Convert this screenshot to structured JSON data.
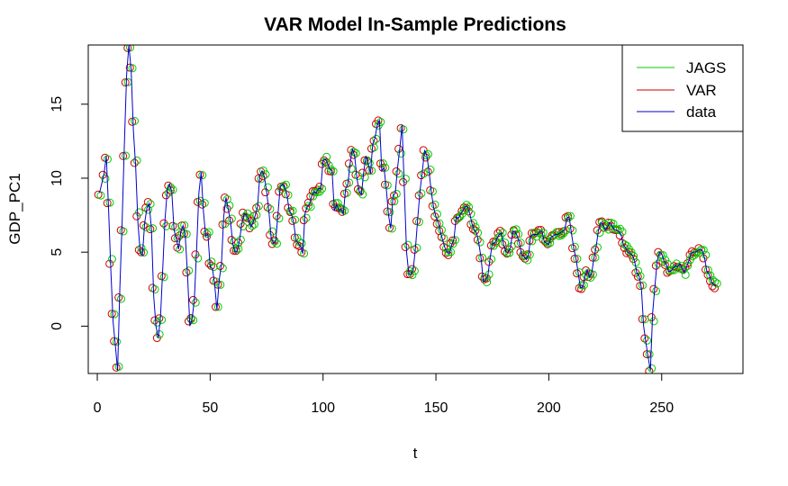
{
  "chart_data": {
    "type": "line",
    "title": "VAR Model In-Sample Predictions",
    "xlabel": "t",
    "ylabel": "GDP_PC1",
    "xlim": [
      -4,
      286
    ],
    "ylim": [
      -3.2,
      19.0
    ],
    "x_ticks": [
      0,
      50,
      100,
      150,
      200,
      250
    ],
    "y_ticks": [
      0,
      5,
      10,
      15
    ],
    "legend": {
      "placement": "top-right",
      "entries": [
        {
          "label": "JAGS",
          "color": "#00cc00"
        },
        {
          "label": "VAR",
          "color": "#cc0000"
        },
        {
          "label": "data",
          "color": "#0000cc"
        }
      ]
    },
    "anchors": [
      [
        1,
        9.0
      ],
      [
        3,
        10.3
      ],
      [
        4,
        11.5
      ],
      [
        5,
        7.9
      ],
      [
        6,
        3.8
      ],
      [
        7,
        0.3
      ],
      [
        8,
        -1.3
      ],
      [
        9,
        -3.0
      ],
      [
        10,
        2.6
      ],
      [
        11,
        7.0
      ],
      [
        12,
        12.3
      ],
      [
        13,
        17.0
      ],
      [
        14,
        19.0
      ],
      [
        15,
        17.3
      ],
      [
        16,
        13.2
      ],
      [
        17,
        10.8
      ],
      [
        18,
        7.0
      ],
      [
        19,
        5.0
      ],
      [
        20,
        4.8
      ],
      [
        21,
        7.0
      ],
      [
        22,
        8.0
      ],
      [
        23,
        8.3
      ],
      [
        24,
        6.5
      ],
      [
        25,
        2.0
      ],
      [
        26,
        0.0
      ],
      [
        27,
        -0.8
      ],
      [
        28,
        0.6
      ],
      [
        29,
        3.9
      ],
      [
        30,
        7.2
      ],
      [
        31,
        9.2
      ],
      [
        32,
        9.6
      ],
      [
        33,
        9.1
      ],
      [
        34,
        6.5
      ],
      [
        35,
        5.9
      ],
      [
        36,
        5.2
      ],
      [
        37,
        6.4
      ],
      [
        38,
        6.8
      ],
      [
        39,
        6.0
      ],
      [
        40,
        3.4
      ],
      [
        41,
        0.0
      ],
      [
        42,
        0.5
      ],
      [
        43,
        1.8
      ],
      [
        44,
        5.2
      ],
      [
        45,
        9.0
      ],
      [
        46,
        10.4
      ],
      [
        47,
        7.8
      ],
      [
        48,
        6.1
      ],
      [
        49,
        6.2
      ],
      [
        50,
        4.0
      ],
      [
        51,
        3.9
      ],
      [
        52,
        2.8
      ],
      [
        53,
        1.1
      ],
      [
        54,
        3.1
      ],
      [
        55,
        4.2
      ],
      [
        56,
        7.4
      ],
      [
        57,
        8.7
      ],
      [
        58,
        7.9
      ],
      [
        59,
        7.1
      ],
      [
        60,
        5.6
      ],
      [
        61,
        5.0
      ],
      [
        62,
        5.1
      ],
      [
        63,
        5.8
      ],
      [
        64,
        6.9
      ],
      [
        65,
        7.6
      ],
      [
        66,
        7.5
      ],
      [
        67,
        7.2
      ],
      [
        68,
        6.7
      ],
      [
        69,
        7.0
      ],
      [
        70,
        7.5
      ],
      [
        71,
        8.1
      ],
      [
        72,
        10.2
      ],
      [
        73,
        10.5
      ],
      [
        74,
        10.1
      ],
      [
        75,
        9.1
      ],
      [
        76,
        7.8
      ],
      [
        77,
        6.0
      ],
      [
        78,
        5.6
      ],
      [
        79,
        5.7
      ],
      [
        80,
        7.5
      ],
      [
        81,
        9.4
      ],
      [
        82,
        9.6
      ],
      [
        83,
        9.4
      ],
      [
        84,
        8.9
      ],
      [
        85,
        7.8
      ],
      [
        86,
        7.6
      ],
      [
        87,
        7.0
      ],
      [
        88,
        5.8
      ],
      [
        89,
        5.6
      ],
      [
        90,
        5.4
      ],
      [
        91,
        4.9
      ],
      [
        92,
        7.6
      ],
      [
        93,
        8.1
      ],
      [
        94,
        8.2
      ],
      [
        95,
        8.8
      ],
      [
        96,
        9.1
      ],
      [
        97,
        9.0
      ],
      [
        98,
        9.3
      ],
      [
        99,
        9.3
      ],
      [
        100,
        11.2
      ],
      [
        101,
        11.3
      ],
      [
        102,
        11.0
      ],
      [
        103,
        10.6
      ],
      [
        104,
        10.5
      ],
      [
        105,
        7.8
      ],
      [
        106,
        8.2
      ],
      [
        107,
        7.8
      ],
      [
        108,
        7.9
      ],
      [
        109,
        7.6
      ],
      [
        110,
        9.3
      ],
      [
        111,
        9.6
      ],
      [
        112,
        11.0
      ],
      [
        113,
        12.0
      ],
      [
        114,
        11.5
      ],
      [
        115,
        10.0
      ],
      [
        116,
        9.1
      ],
      [
        117,
        8.9
      ],
      [
        118,
        10.4
      ],
      [
        119,
        11.5
      ],
      [
        120,
        11.0
      ],
      [
        121,
        10.3
      ],
      [
        122,
        12.3
      ],
      [
        123,
        12.7
      ],
      [
        124,
        13.6
      ],
      [
        125,
        13.9
      ],
      [
        126,
        10.5
      ],
      [
        127,
        10.7
      ],
      [
        128,
        9.3
      ],
      [
        129,
        7.5
      ],
      [
        130,
        6.6
      ],
      [
        131,
        8.8
      ],
      [
        132,
        9.0
      ],
      [
        133,
        10.7
      ],
      [
        134,
        12.0
      ],
      [
        135,
        13.6
      ],
      [
        136,
        9.3
      ],
      [
        137,
        5.0
      ],
      [
        138,
        3.5
      ],
      [
        139,
        3.5
      ],
      [
        140,
        3.9
      ],
      [
        141,
        5.4
      ],
      [
        142,
        7.4
      ],
      [
        143,
        9.2
      ],
      [
        144,
        10.5
      ],
      [
        145,
        11.9
      ],
      [
        146,
        11.5
      ],
      [
        147,
        10.4
      ],
      [
        148,
        9.0
      ],
      [
        149,
        8.0
      ],
      [
        150,
        7.4
      ],
      [
        151,
        7.0
      ],
      [
        152,
        6.4
      ],
      [
        153,
        5.8
      ],
      [
        154,
        5.3
      ],
      [
        155,
        5.0
      ],
      [
        156,
        4.9
      ],
      [
        157,
        5.5
      ],
      [
        158,
        5.9
      ],
      [
        159,
        7.4
      ],
      [
        160,
        7.3
      ],
      [
        161,
        7.6
      ],
      [
        162,
        7.8
      ],
      [
        163,
        8.1
      ],
      [
        164,
        8.1
      ],
      [
        165,
        7.6
      ],
      [
        166,
        6.9
      ],
      [
        167,
        6.5
      ],
      [
        168,
        6.3
      ],
      [
        169,
        5.6
      ],
      [
        170,
        4.6
      ],
      [
        171,
        3.0
      ],
      [
        172,
        3.1
      ],
      [
        173,
        3.4
      ],
      [
        174,
        4.6
      ],
      [
        175,
        5.6
      ],
      [
        176,
        5.6
      ],
      [
        177,
        5.9
      ],
      [
        178,
        6.2
      ],
      [
        179,
        6.3
      ],
      [
        180,
        5.5
      ],
      [
        181,
        5.0
      ],
      [
        182,
        5.0
      ],
      [
        183,
        5.3
      ],
      [
        184,
        6.4
      ],
      [
        185,
        6.4
      ],
      [
        186,
        6.1
      ],
      [
        187,
        5.6
      ],
      [
        188,
        4.8
      ],
      [
        189,
        4.7
      ],
      [
        190,
        4.5
      ],
      [
        191,
        4.8
      ],
      [
        192,
        6.1
      ],
      [
        193,
        6.2
      ],
      [
        194,
        6.2
      ],
      [
        195,
        6.2
      ],
      [
        196,
        6.4
      ],
      [
        197,
        6.4
      ],
      [
        198,
        5.7
      ],
      [
        199,
        5.6
      ],
      [
        200,
        5.5
      ],
      [
        201,
        6.0
      ],
      [
        202,
        6.1
      ],
      [
        203,
        6.2
      ],
      [
        204,
        6.2
      ],
      [
        205,
        6.3
      ],
      [
        206,
        6.4
      ],
      [
        207,
        6.5
      ],
      [
        208,
        7.3
      ],
      [
        209,
        7.4
      ],
      [
        210,
        6.3
      ],
      [
        211,
        5.3
      ],
      [
        212,
        4.6
      ],
      [
        213,
        3.6
      ],
      [
        214,
        2.6
      ],
      [
        215,
        2.6
      ],
      [
        216,
        3.4
      ],
      [
        217,
        3.8
      ],
      [
        218,
        3.3
      ],
      [
        219,
        3.6
      ],
      [
        220,
        4.6
      ],
      [
        221,
        5.4
      ],
      [
        222,
        6.5
      ],
      [
        223,
        7.0
      ],
      [
        224,
        6.9
      ],
      [
        225,
        6.5
      ],
      [
        226,
        6.7
      ],
      [
        227,
        7.0
      ],
      [
        228,
        6.8
      ],
      [
        229,
        6.5
      ],
      [
        230,
        6.5
      ],
      [
        231,
        6.4
      ],
      [
        232,
        6.2
      ],
      [
        233,
        5.5
      ],
      [
        234,
        5.3
      ],
      [
        235,
        5.0
      ],
      [
        236,
        4.9
      ],
      [
        237,
        4.8
      ],
      [
        238,
        4.4
      ],
      [
        239,
        3.6
      ],
      [
        240,
        3.4
      ],
      [
        241,
        2.6
      ],
      [
        242,
        0.0
      ],
      [
        243,
        -1.1
      ],
      [
        244,
        -2.1
      ],
      [
        245,
        -3.0
      ],
      [
        246,
        0.9
      ],
      [
        247,
        2.7
      ],
      [
        248,
        4.4
      ],
      [
        249,
        5.0
      ],
      [
        250,
        4.9
      ],
      [
        251,
        4.4
      ],
      [
        252,
        4.2
      ],
      [
        253,
        3.7
      ],
      [
        254,
        3.7
      ],
      [
        255,
        3.9
      ],
      [
        256,
        4.1
      ],
      [
        257,
        4.0
      ],
      [
        258,
        4.2
      ],
      [
        259,
        3.9
      ],
      [
        260,
        3.6
      ],
      [
        261,
        4.0
      ],
      [
        262,
        4.4
      ],
      [
        263,
        4.9
      ],
      [
        264,
        5.0
      ],
      [
        265,
        5.0
      ],
      [
        266,
        5.1
      ],
      [
        267,
        5.2
      ],
      [
        268,
        5.1
      ],
      [
        269,
        4.6
      ],
      [
        270,
        3.7
      ],
      [
        271,
        3.5
      ],
      [
        272,
        3.0
      ],
      [
        273,
        2.8
      ],
      [
        274,
        2.7
      ]
    ],
    "series": [
      {
        "name": "data",
        "color": "#0000cc",
        "kind": "line"
      },
      {
        "name": "VAR",
        "color": "#cc0000",
        "kind": "points"
      },
      {
        "name": "JAGS",
        "color": "#00cc00",
        "kind": "points"
      }
    ]
  }
}
